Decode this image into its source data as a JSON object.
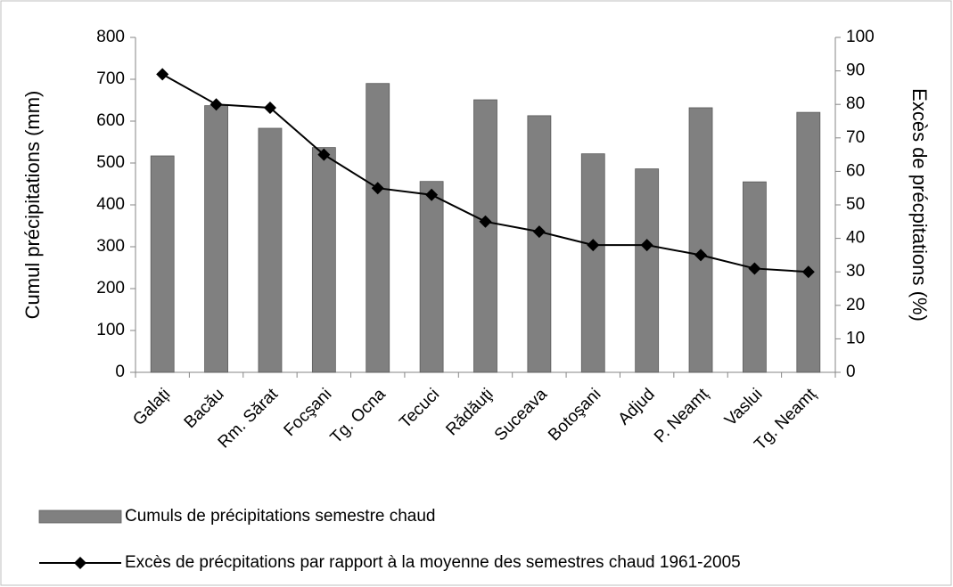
{
  "chart_data": {
    "type": "bar",
    "categories": [
      "Galați",
      "Bacău",
      "Rm. Sărat",
      "Focşani",
      "Tg. Ocna",
      "Tecuci",
      "Rădăuţi",
      "Suceava",
      "Botoşani",
      "Adjud",
      "P. Neamț",
      "Vaslui",
      "Tg. Neamț"
    ],
    "series": [
      {
        "name": "Cumuls de précipitations semestre chaud",
        "type": "bar",
        "color": "#808080",
        "axis": "y",
        "values": [
          517,
          637,
          583,
          537,
          690,
          456,
          651,
          613,
          522,
          486,
          632,
          455,
          621
        ]
      },
      {
        "name": "Excès de précpitations par rapport à la moyenne des semestres chaud 1961-2005",
        "type": "line",
        "color": "#000000",
        "axis": "y2",
        "values": [
          89,
          80,
          79,
          65,
          55,
          53,
          45,
          42,
          38,
          38,
          35,
          31,
          30
        ]
      }
    ],
    "ylabel": "Cumul précipitations (mm)",
    "y2label": "Excès de précpitations (%)",
    "ylim": [
      0,
      800
    ],
    "yticks": [
      0,
      100,
      200,
      300,
      400,
      500,
      600,
      700,
      800
    ],
    "y2lim": [
      0,
      100
    ],
    "y2ticks": [
      0,
      10,
      20,
      30,
      40,
      50,
      60,
      70,
      80,
      90,
      100
    ],
    "grid": false,
    "legend": "bottom"
  }
}
